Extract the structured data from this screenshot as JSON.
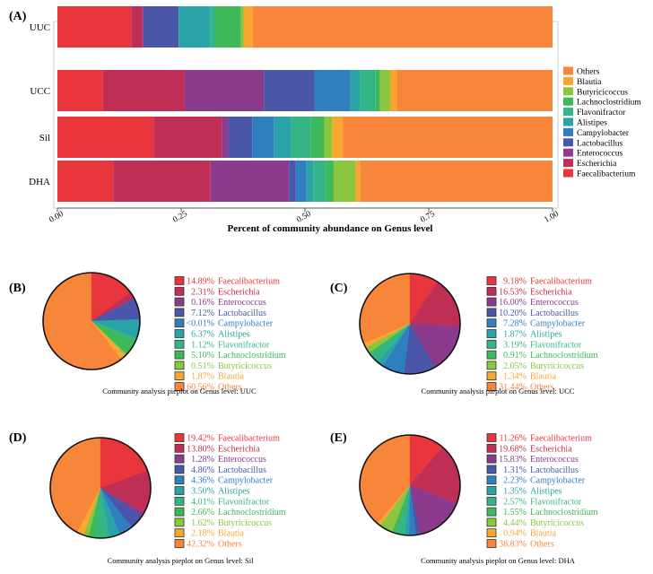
{
  "panel_labels": [
    "(A)",
    "(B)",
    "(C)",
    "(D)",
    "(E)"
  ],
  "genera": [
    "Faecalibacterium",
    "Escherichia",
    "Enterococcus",
    "Lactobacillus",
    "Campylobacter",
    "Alistipes",
    "Flavonifractor",
    "Lachnoclostridium",
    "Butyricicoccus",
    "Blautia",
    "Others"
  ],
  "colors": [
    "#e8363c",
    "#bf2f55",
    "#8b3a8e",
    "#4a57a8",
    "#2f7fc0",
    "#2aa3a8",
    "#35b585",
    "#3fb85a",
    "#8cc63f",
    "#f8a630",
    "#f7853a"
  ],
  "chart_data": [
    {
      "type": "bar",
      "orientation": "horizontal-stacked",
      "xlabel": "Percent of community abundance on Genus level",
      "xlim": [
        0,
        1
      ],
      "xticks": [
        "0.00",
        "0.25",
        "0.50",
        "0.75",
        "1.00"
      ],
      "categories": [
        "UUC",
        "UCC",
        "Sil",
        "DHA"
      ],
      "legend_order": [
        "Others",
        "Blautia",
        "Butyricicoccus",
        "Lachnoclostridium",
        "Flavonifractor",
        "Alistipes",
        "Campylobacter",
        "Lactobacillus",
        "Enterococcus",
        "Escherichia",
        "Faecalibacterium"
      ],
      "legend_position": "right",
      "series": [
        {
          "name": "Faecalibacterium",
          "values": [
            0.1489,
            0.0918,
            0.1942,
            0.1126
          ]
        },
        {
          "name": "Escherichia",
          "values": [
            0.0231,
            0.1653,
            0.138,
            0.1968
          ]
        },
        {
          "name": "Enterococcus",
          "values": [
            0.0016,
            0.16,
            0.0128,
            0.1583
          ]
        },
        {
          "name": "Lactobacillus",
          "values": [
            0.0712,
            0.102,
            0.0486,
            0.0131
          ]
        },
        {
          "name": "Campylobacter",
          "values": [
            0.0001,
            0.0728,
            0.0436,
            0.0223
          ]
        },
        {
          "name": "Alistipes",
          "values": [
            0.0637,
            0.0187,
            0.035,
            0.0135
          ]
        },
        {
          "name": "Flavonifractor",
          "values": [
            0.0112,
            0.0319,
            0.0401,
            0.0257
          ]
        },
        {
          "name": "Lachnoclostridium",
          "values": [
            0.051,
            0.0091,
            0.0266,
            0.0155
          ]
        },
        {
          "name": "Butyricicoccus",
          "values": [
            0.0051,
            0.0205,
            0.0162,
            0.0444
          ]
        },
        {
          "name": "Blautia",
          "values": [
            0.0187,
            0.0134,
            0.0218,
            0.0094
          ]
        },
        {
          "name": "Others",
          "values": [
            0.6056,
            0.3144,
            0.4232,
            0.3883
          ]
        }
      ]
    },
    {
      "type": "pie",
      "panel": "(B)",
      "title": "Community analysis pieplot on Genus level: UUC",
      "labels": [
        "14.89%",
        "2.31%",
        "0.16%",
        "7.12%",
        "<0.01%",
        "6.37%",
        "1.12%",
        "5.10%",
        "0.51%",
        "1.87%",
        "60.56%"
      ],
      "values": [
        14.89,
        2.31,
        0.16,
        7.12,
        0.005,
        6.37,
        1.12,
        5.1,
        0.51,
        1.87,
        60.56
      ]
    },
    {
      "type": "pie",
      "panel": "(C)",
      "title": "Community analysis pieplot on Genus level: UCC",
      "labels": [
        "9.18%",
        "16.53%",
        "16.00%",
        "10.20%",
        "7.28%",
        "1.87%",
        "3.19%",
        "0.91%",
        "2.05%",
        "1.34%",
        "31.44%"
      ],
      "values": [
        9.18,
        16.53,
        16.0,
        10.2,
        7.28,
        1.87,
        3.19,
        0.91,
        2.05,
        1.34,
        31.44
      ]
    },
    {
      "type": "pie",
      "panel": "(D)",
      "title": "Community analysis pieplot on Genus level: Sil",
      "labels": [
        "19.42%",
        "13.80%",
        "1.28%",
        "4.86%",
        "4.36%",
        "3.50%",
        "4.01%",
        "2.66%",
        "1.62%",
        "2.18%",
        "42.32%"
      ],
      "values": [
        19.42,
        13.8,
        1.28,
        4.86,
        4.36,
        3.5,
        4.01,
        2.66,
        1.62,
        2.18,
        42.32
      ]
    },
    {
      "type": "pie",
      "panel": "(E)",
      "title": "Community analysis pieplot on Genus level: DHA",
      "labels": [
        "11.26%",
        "19.68%",
        "15.83%",
        "1.31%",
        "2.23%",
        "1.35%",
        "2.57%",
        "1.55%",
        "4.44%",
        "0.94%",
        "38.83%"
      ],
      "values": [
        11.26,
        19.68,
        15.83,
        1.31,
        2.23,
        1.35,
        2.57,
        1.55,
        4.44,
        0.94,
        38.83
      ]
    }
  ]
}
